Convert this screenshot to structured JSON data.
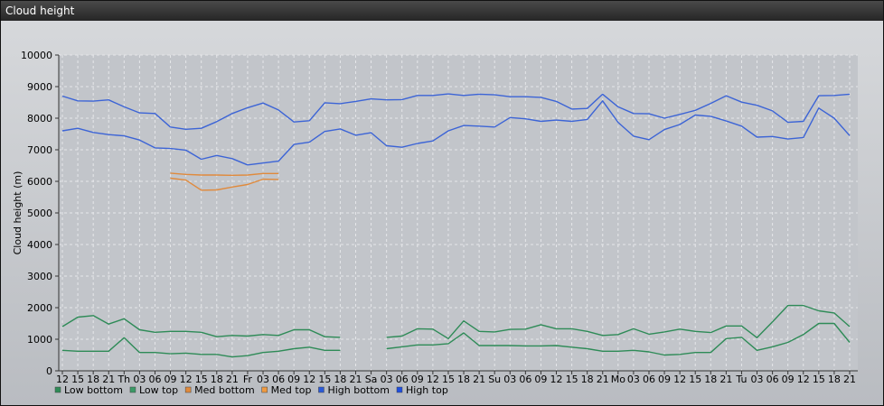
{
  "window": {
    "title": "Cloud height"
  },
  "chart_data": {
    "type": "line",
    "title": "",
    "ylabel": "Cloud height (m)",
    "xlabel": "",
    "ylim": [
      0,
      10000
    ],
    "yticks": [
      0,
      1000,
      2000,
      3000,
      4000,
      5000,
      6000,
      7000,
      8000,
      9000,
      10000
    ],
    "grid": true,
    "legend_position": "bottom-left",
    "x": [
      "12",
      "15",
      "18",
      "21",
      "Th",
      "03",
      "06",
      "09",
      "12",
      "15",
      "18",
      "21",
      "Fr",
      "03",
      "06",
      "09",
      "12",
      "15",
      "18",
      "21",
      "Sa",
      "03",
      "06",
      "09",
      "12",
      "15",
      "18",
      "21",
      "Su",
      "03",
      "06",
      "09",
      "12",
      "15",
      "18",
      "21",
      "Mo",
      "03",
      "06",
      "09",
      "12",
      "15",
      "18",
      "21",
      "Tu",
      "03",
      "06",
      "09",
      "12",
      "15",
      "18",
      "21"
    ],
    "series": [
      {
        "name": "Low bottom",
        "color": "#2e8b57",
        "legend_color": "#2e8b57",
        "values": [
          650,
          620,
          620,
          620,
          1050,
          580,
          580,
          540,
          560,
          520,
          520,
          440,
          480,
          580,
          620,
          700,
          750,
          650,
          650,
          null,
          null,
          700,
          760,
          820,
          820,
          860,
          1200,
          800,
          800,
          800,
          790,
          790,
          800,
          750,
          700,
          620,
          620,
          650,
          600,
          500,
          520,
          580,
          580,
          1020,
          1060,
          650,
          760,
          900,
          1150,
          1500,
          1500,
          900
        ]
      },
      {
        "name": "Low top",
        "color": "#2e8b57",
        "legend_color": "#3a9a66",
        "values": [
          1400,
          1700,
          1750,
          1480,
          1650,
          1300,
          1220,
          1250,
          1250,
          1220,
          1080,
          1120,
          1100,
          1150,
          1120,
          1300,
          1300,
          1080,
          1060,
          null,
          null,
          1060,
          1100,
          1330,
          1320,
          1020,
          1580,
          1250,
          1230,
          1310,
          1320,
          1460,
          1330,
          1330,
          1250,
          1120,
          1150,
          1330,
          1160,
          1230,
          1320,
          1250,
          1210,
          1420,
          1420,
          1050,
          1550,
          2070,
          2070,
          1900,
          1830,
          1400
        ]
      },
      {
        "name": "Med bottom",
        "color": "#e08a3c",
        "legend_color": "#e08a3c",
        "values": [
          null,
          null,
          null,
          null,
          null,
          null,
          null,
          6100,
          6040,
          5720,
          5730,
          5820,
          5900,
          6070,
          6060,
          null,
          null,
          null,
          null,
          null,
          null,
          null,
          null,
          null,
          null,
          null,
          null,
          null,
          null,
          null,
          null,
          null,
          null,
          null,
          null,
          null,
          null,
          null,
          null,
          null,
          null,
          null,
          null,
          null,
          null,
          null,
          null,
          null,
          null,
          null,
          null,
          null
        ]
      },
      {
        "name": "Med top",
        "color": "#e08a3c",
        "legend_color": "#f09a40",
        "values": [
          null,
          null,
          null,
          null,
          null,
          null,
          null,
          6260,
          6220,
          6200,
          6200,
          6190,
          6200,
          6250,
          6250,
          null,
          null,
          null,
          null,
          null,
          null,
          null,
          null,
          null,
          null,
          null,
          null,
          null,
          null,
          null,
          null,
          null,
          null,
          null,
          null,
          null,
          null,
          null,
          null,
          null,
          null,
          null,
          null,
          null,
          null,
          null,
          null,
          null,
          null,
          null,
          null,
          null
        ]
      },
      {
        "name": "High bottom",
        "color": "#3c64d6",
        "legend_color": "#2a5ad8",
        "values": [
          7600,
          7680,
          7550,
          7480,
          7440,
          7310,
          7060,
          7040,
          6990,
          6700,
          6820,
          6720,
          6520,
          6580,
          6640,
          7170,
          7240,
          7580,
          7660,
          7460,
          7540,
          7130,
          7080,
          7200,
          7280,
          7600,
          7770,
          7750,
          7720,
          8020,
          7980,
          7900,
          7940,
          7900,
          7960,
          8550,
          7870,
          7430,
          7320,
          7640,
          7800,
          8100,
          8060,
          7910,
          7750,
          7400,
          7420,
          7340,
          7390,
          8320,
          8000,
          7450
        ]
      },
      {
        "name": "High top",
        "color": "#3c64d6",
        "legend_color": "#1f4fe0",
        "values": [
          8700,
          8550,
          8540,
          8580,
          8360,
          8170,
          8150,
          7720,
          7650,
          7680,
          7890,
          8150,
          8330,
          8480,
          8260,
          7880,
          7920,
          8490,
          8460,
          8530,
          8610,
          8580,
          8590,
          8720,
          8720,
          8770,
          8720,
          8760,
          8740,
          8680,
          8680,
          8660,
          8530,
          8290,
          8310,
          8760,
          8360,
          8150,
          8140,
          8000,
          8120,
          8250,
          8470,
          8710,
          8510,
          8410,
          8230,
          7870,
          7900,
          8710,
          8720,
          8760
        ]
      }
    ]
  }
}
